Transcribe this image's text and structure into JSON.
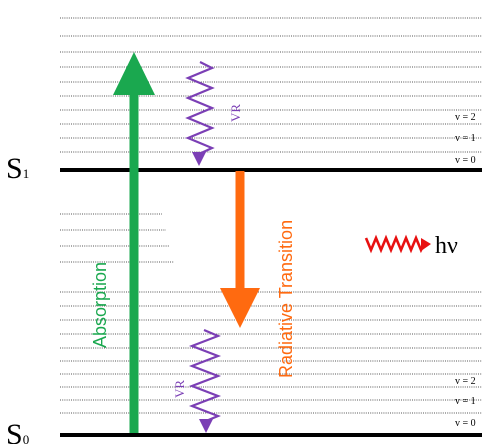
{
  "states": {
    "s1": {
      "letter": "S",
      "subscript": "1"
    },
    "s0": {
      "letter": "S",
      "subscript": "0"
    }
  },
  "levels_s1": [
    "v = 2",
    "v = 1",
    "v = 0"
  ],
  "levels_s0": [
    "v = 2",
    "v = 1",
    "v = 0"
  ],
  "labels": {
    "absorption": "Absorption",
    "radiative": "Radiative Transition",
    "vr": "VR",
    "hv": "hν"
  },
  "colors": {
    "absorption": "#1aa84f",
    "radiative": "#ff6a10",
    "vr": "#7b3fb5",
    "photon": "#e81010",
    "level": "#000000"
  }
}
